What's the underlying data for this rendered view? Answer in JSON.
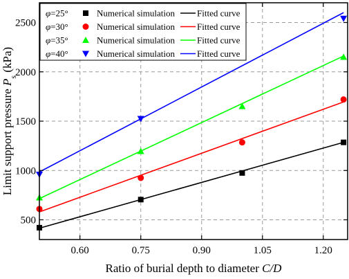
{
  "chart_data": {
    "type": "scatter",
    "xlabel": "Ratio of burial depth to diameter C/D",
    "ylabel": "Limit support pressure Ps (kPa)",
    "ylabel_main": "Limit support pressure ",
    "ylabel_symbol": "P",
    "ylabel_subscript": "s",
    "ylabel_unit": " (kPa)",
    "xlabel_main": "Ratio of burial depth to diameter ",
    "xlabel_symbol": "C/D",
    "xlim": [
      0.5,
      1.26
    ],
    "ylim": [
      300,
      2700
    ],
    "xticks": [
      "0.60",
      "0.75",
      "0.90",
      "1.05",
      "1.20"
    ],
    "xtick_values": [
      0.6,
      0.75,
      0.9,
      1.05,
      1.2
    ],
    "yticks": [
      "500",
      "1000",
      "1500",
      "2000",
      "2500"
    ],
    "ytick_values": [
      500,
      1000,
      1500,
      2000,
      2500
    ],
    "grid": "dashed",
    "legend_position": "top-left",
    "x": [
      0.5,
      0.75,
      1.0,
      1.25
    ],
    "series": [
      {
        "name": "φ=25°",
        "phi_symbol": "φ",
        "phi_value": "=25°",
        "marker": "square",
        "color": "#000000",
        "values": [
          420,
          705,
          975,
          1285
        ],
        "fit": [
          415,
          1285
        ],
        "scatter_label": "Numerical simulation",
        "fit_label": "Fitted curve"
      },
      {
        "name": "φ=30°",
        "phi_symbol": "φ",
        "phi_value": "=30°",
        "marker": "circle",
        "color": "#ff0000",
        "values": [
          610,
          925,
          1285,
          1720
        ],
        "fit": [
          580,
          1695
        ],
        "scatter_label": "Numerical simulation",
        "fit_label": "Fitted curve"
      },
      {
        "name": "φ=35°",
        "phi_symbol": "φ",
        "phi_value": "=35°",
        "marker": "triangle-up",
        "color": "#00ff00",
        "values": [
          725,
          1195,
          1650,
          2150
        ],
        "fit": [
          715,
          2160
        ],
        "scatter_label": "Numerical simulation",
        "fit_label": "Fitted curve"
      },
      {
        "name": "φ=40°",
        "phi_symbol": "φ",
        "phi_value": "=40°",
        "marker": "triangle-down",
        "color": "#0000ff",
        "values": [
          960,
          1525,
          2150,
          2540
        ],
        "fit": [
          985,
          2600
        ],
        "scatter_label": "Numerical simulation",
        "fit_label": "Fitted curve"
      }
    ]
  }
}
